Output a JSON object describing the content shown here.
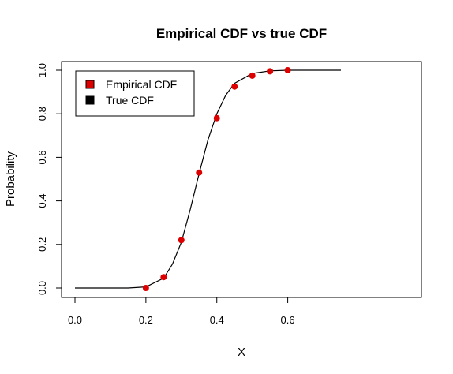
{
  "chart_data": {
    "type": "scatter",
    "title": "Empirical CDF vs true CDF",
    "xlabel": "X",
    "ylabel": "Probability",
    "xlim": [
      0,
      0.75
    ],
    "ylim": [
      0,
      1
    ],
    "x_ticks": [
      "0.0",
      "0.2",
      "0.4",
      "0.6"
    ],
    "y_ticks": [
      "0.0",
      "0.2",
      "0.4",
      "0.6",
      "0.8",
      "1.0"
    ],
    "grid": false,
    "legend": {
      "position": "top-left",
      "entries": [
        "Empirical CDF",
        "True CDF"
      ]
    },
    "series": [
      {
        "name": "Empirical CDF",
        "kind": "points",
        "color": "#dd0000",
        "points": [
          {
            "x": 0.2,
            "y": 0.0
          },
          {
            "x": 0.25,
            "y": 0.05
          },
          {
            "x": 0.3,
            "y": 0.22
          },
          {
            "x": 0.35,
            "y": 0.53
          },
          {
            "x": 0.4,
            "y": 0.78
          },
          {
            "x": 0.45,
            "y": 0.925
          },
          {
            "x": 0.5,
            "y": 0.975
          },
          {
            "x": 0.55,
            "y": 0.995
          },
          {
            "x": 0.6,
            "y": 1.0
          }
        ]
      },
      {
        "name": "True CDF",
        "kind": "line",
        "color": "#000000",
        "points": [
          {
            "x": 0.0,
            "y": 0.0
          },
          {
            "x": 0.15,
            "y": 0.0
          },
          {
            "x": 0.2,
            "y": 0.005
          },
          {
            "x": 0.25,
            "y": 0.045
          },
          {
            "x": 0.275,
            "y": 0.11
          },
          {
            "x": 0.3,
            "y": 0.21
          },
          {
            "x": 0.325,
            "y": 0.36
          },
          {
            "x": 0.35,
            "y": 0.525
          },
          {
            "x": 0.375,
            "y": 0.68
          },
          {
            "x": 0.4,
            "y": 0.8
          },
          {
            "x": 0.425,
            "y": 0.885
          },
          {
            "x": 0.45,
            "y": 0.94
          },
          {
            "x": 0.5,
            "y": 0.985
          },
          {
            "x": 0.55,
            "y": 0.997
          },
          {
            "x": 0.6,
            "y": 1.0
          },
          {
            "x": 0.75,
            "y": 1.0
          }
        ]
      }
    ]
  }
}
